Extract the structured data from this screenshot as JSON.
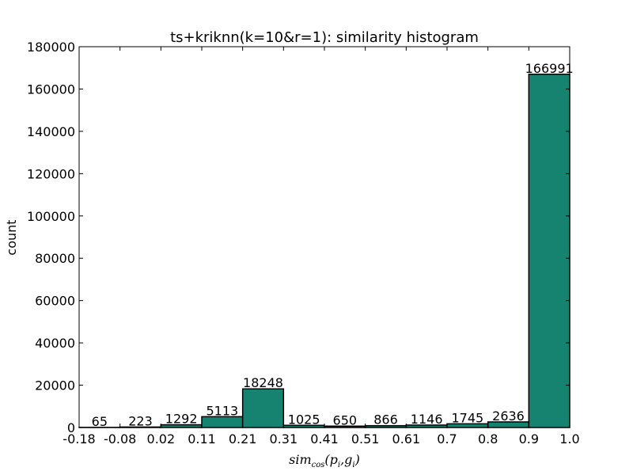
{
  "chart_data": {
    "type": "bar",
    "title": "ts+kriknn(k=10&r=1): similarity histogram",
    "xlabel": "sim_cos(p_i, g_i)",
    "xlabel_parts": {
      "base": "sim",
      "sub": "cos",
      "open": "(p",
      "i1": "i",
      "mid": ",g",
      "i2": "i",
      "close": ")"
    },
    "ylabel": "count",
    "ylim": [
      0,
      180000
    ],
    "yticks": [
      "0",
      "20000",
      "40000",
      "60000",
      "80000",
      "100000",
      "120000",
      "140000",
      "160000",
      "180000"
    ],
    "yticks_values": [
      0,
      20000,
      40000,
      60000,
      80000,
      100000,
      120000,
      140000,
      160000,
      180000
    ],
    "bin_edges": [
      "-0.18",
      "-0.08",
      "0.02",
      "0.11",
      "0.21",
      "0.31",
      "0.41",
      "0.51",
      "0.61",
      "0.7",
      "0.8",
      "0.9",
      "1.0"
    ],
    "values": [
      65,
      223,
      1292,
      5113,
      18248,
      1025,
      650,
      866,
      1146,
      1745,
      2636,
      166991
    ],
    "data_labels": [
      "65",
      "223",
      "1292",
      "5113",
      "18248",
      "1025",
      "650",
      "866",
      "1146",
      "1745",
      "2636",
      "166991"
    ],
    "bar_color": "#168270",
    "edge_color": "#000000",
    "grid": false
  }
}
